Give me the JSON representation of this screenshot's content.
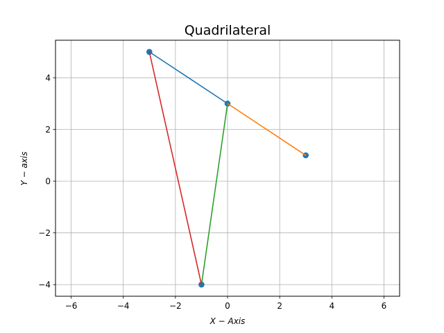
{
  "chart_data": {
    "type": "line",
    "title": "Quadrilateral",
    "xlabel": "X − Axis",
    "ylabel": "Y − axis",
    "xlim": [
      -6.6,
      6.6
    ],
    "ylim": [
      -4.45,
      5.45
    ],
    "xticks": [
      -6,
      -4,
      -2,
      0,
      2,
      4,
      6
    ],
    "yticks": [
      -4,
      -2,
      0,
      2,
      4
    ],
    "xtick_labels": [
      "−6",
      "−4",
      "−2",
      "0",
      "2",
      "4",
      "6"
    ],
    "ytick_labels": [
      "−4",
      "−2",
      "0",
      "2",
      "4"
    ],
    "grid": true,
    "points": {
      "x": [
        -3,
        0,
        3,
        -1
      ],
      "y": [
        5,
        3,
        1,
        -4
      ],
      "color": "#1f77b4"
    },
    "series": [
      {
        "x": [
          -3,
          0
        ],
        "y": [
          5,
          3
        ],
        "color": "#1f77b4"
      },
      {
        "x": [
          0,
          3
        ],
        "y": [
          3,
          1
        ],
        "color": "#ff7f0e"
      },
      {
        "x": [
          -1,
          0
        ],
        "y": [
          -4,
          3
        ],
        "color": "#2ca02c"
      },
      {
        "x": [
          -3,
          -1
        ],
        "y": [
          5,
          -4
        ],
        "color": "#d62728"
      }
    ]
  }
}
